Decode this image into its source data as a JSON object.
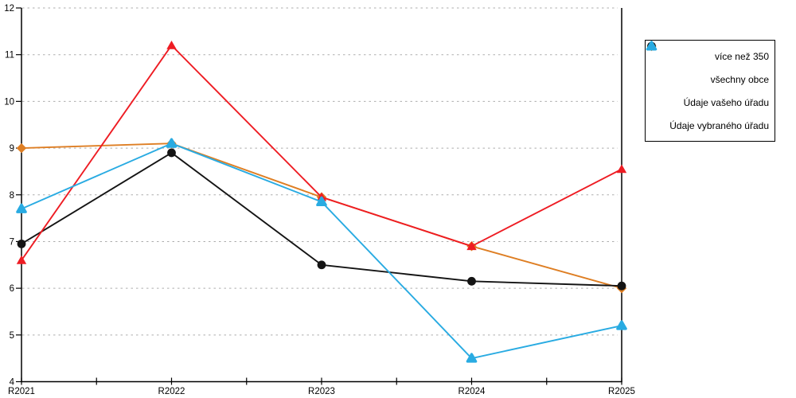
{
  "chart_data": {
    "type": "line",
    "title": "",
    "xlabel": "",
    "ylabel": "",
    "x_labels": [
      "R2021",
      "R2022",
      "R2023",
      "R2024",
      "R2025"
    ],
    "y_ticks": [
      4,
      5,
      6,
      7,
      8,
      9,
      10,
      11,
      12
    ],
    "ylim": [
      4,
      12
    ],
    "grid": "horizontal dashed gridlines at integer values",
    "legend_position": "right outside plot",
    "series": [
      {
        "name": "více než 350",
        "marker": "diamond",
        "color": "#DE7E23",
        "values": [
          9.0,
          9.1,
          7.95,
          6.9,
          6.0
        ]
      },
      {
        "name": "všechny obce",
        "marker": "circle",
        "color": "#141414",
        "values": [
          6.95,
          8.9,
          6.5,
          6.15,
          6.05
        ]
      },
      {
        "name": "Údaje vašeho úřadu",
        "marker": "triangle",
        "color": "#EE1C23",
        "values": [
          6.6,
          11.2,
          7.95,
          6.9,
          8.55
        ]
      },
      {
        "name": "Údaje vybraného úřadu",
        "marker": "triangle-rounded",
        "color": "#29ABE2",
        "values": [
          7.7,
          9.1,
          7.85,
          4.5,
          5.2
        ]
      }
    ]
  },
  "colors": {
    "background": "#FFFFFF",
    "grid": "#ADADAD",
    "axis": "#000000",
    "tick_label": "#000000",
    "legend_border": "#000000"
  }
}
